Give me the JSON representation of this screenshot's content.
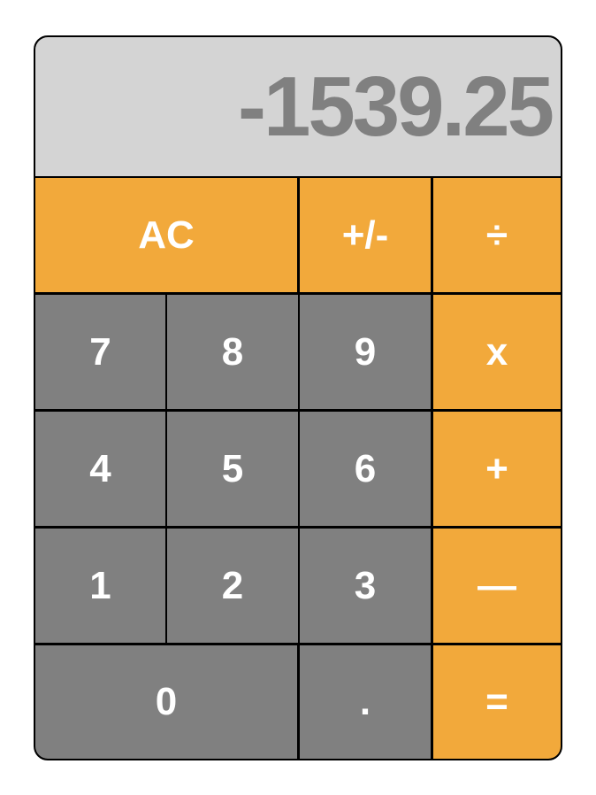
{
  "display": {
    "value": "-1539.25"
  },
  "colors": {
    "display_bg": "#d4d4d4",
    "display_text": "#808080",
    "number_key": "#808080",
    "operator_key": "#f2a93b",
    "key_text": "#ffffff",
    "border": "#000000"
  },
  "keys": {
    "clear": "AC",
    "sign": "+/-",
    "divide": "÷",
    "multiply": "x",
    "add": "+",
    "subtract": "—",
    "equals": "=",
    "decimal": ".",
    "digit_0": "0",
    "digit_1": "1",
    "digit_2": "2",
    "digit_3": "3",
    "digit_4": "4",
    "digit_5": "5",
    "digit_6": "6",
    "digit_7": "7",
    "digit_8": "8",
    "digit_9": "9"
  }
}
